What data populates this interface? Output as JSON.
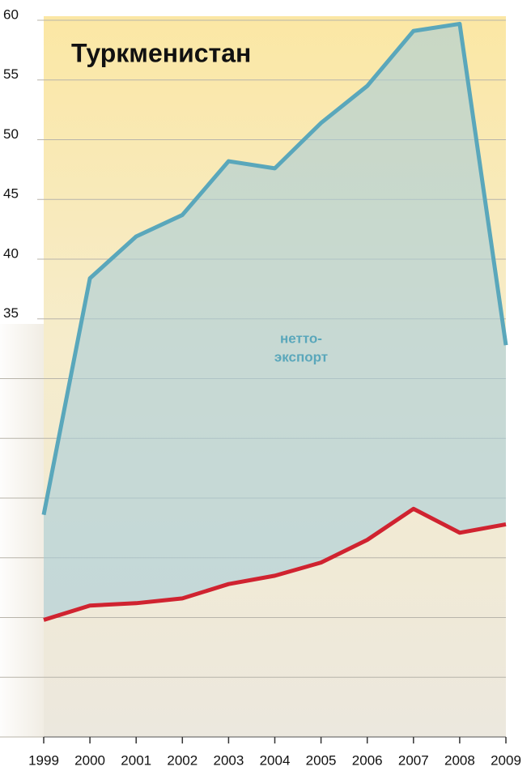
{
  "chart_data": {
    "type": "line",
    "title": "Туркменистан",
    "annotation": [
      "нетто-",
      "экспорт"
    ],
    "categories": [
      "1999",
      "2000",
      "2001",
      "2002",
      "2003",
      "2004",
      "2005",
      "2006",
      "2007",
      "2008",
      "2009"
    ],
    "series": [
      {
        "color": "#5aa7bb",
        "values": [
          18.6,
          38.4,
          41.9,
          43.7,
          48.2,
          47.6,
          51.4,
          54.5,
          59.1,
          59.7,
          32.8
        ]
      },
      {
        "color": "#d02330",
        "values": [
          9.8,
          11.0,
          11.2,
          11.6,
          12.8,
          13.5,
          14.6,
          16.5,
          19.1,
          17.1,
          17.8
        ]
      }
    ],
    "fill_between": true,
    "ylim": [
      0,
      60
    ],
    "yticks": [
      {
        "value": 0,
        "label": null
      },
      {
        "value": 5,
        "label": null
      },
      {
        "value": 10,
        "label": null
      },
      {
        "value": 15,
        "label": null
      },
      {
        "value": 20,
        "label": null
      },
      {
        "value": 25,
        "label": null
      },
      {
        "value": 30,
        "label": null
      },
      35,
      40,
      45,
      50,
      55,
      60
    ],
    "grid": true
  }
}
